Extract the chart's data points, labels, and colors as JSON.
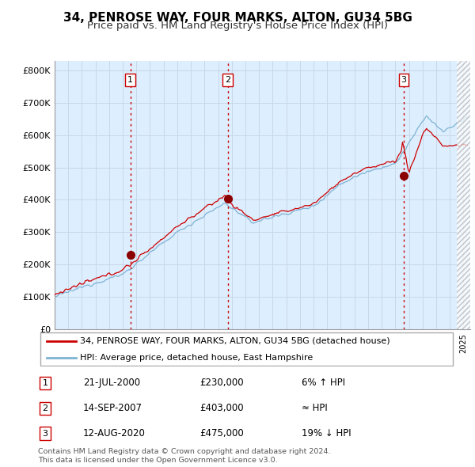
{
  "title": "34, PENROSE WAY, FOUR MARKS, ALTON, GU34 5BG",
  "subtitle": "Price paid vs. HM Land Registry's House Price Index (HPI)",
  "ylim": [
    0,
    830000
  ],
  "yticks": [
    0,
    100000,
    200000,
    300000,
    400000,
    500000,
    600000,
    700000,
    800000
  ],
  "ytick_labels": [
    "£0",
    "£100K",
    "£200K",
    "£300K",
    "£400K",
    "£500K",
    "£600K",
    "£700K",
    "£800K"
  ],
  "xlim_start": 1995.0,
  "xlim_end": 2025.5,
  "hatch_start": 2024.5,
  "transactions": [
    {
      "label": "1",
      "date_num": 2000.55,
      "price": 230000
    },
    {
      "label": "2",
      "date_num": 2007.71,
      "price": 403000
    },
    {
      "label": "3",
      "date_num": 2020.62,
      "price": 475000
    }
  ],
  "vline_color": "#cc0000",
  "vline_style": ":",
  "property_line_color": "#cc0000",
  "hpi_line_color": "#7fb3d3",
  "plot_bg_color": "#ddeeff",
  "legend_property": "34, PENROSE WAY, FOUR MARKS, ALTON, GU34 5BG (detached house)",
  "legend_hpi": "HPI: Average price, detached house, East Hampshire",
  "table_rows": [
    {
      "num": "1",
      "date": "21-JUL-2000",
      "price": "£230,000",
      "note": "6% ↑ HPI"
    },
    {
      "num": "2",
      "date": "14-SEP-2007",
      "price": "£403,000",
      "note": "≈ HPI"
    },
    {
      "num": "3",
      "date": "12-AUG-2020",
      "price": "£475,000",
      "note": "19% ↓ HPI"
    }
  ],
  "footer": "Contains HM Land Registry data © Crown copyright and database right 2024.\nThis data is licensed under the Open Government Licence v3.0.",
  "background_color": "#ffffff",
  "grid_color": "#c8d8e8",
  "title_fontsize": 11,
  "subtitle_fontsize": 9.5
}
